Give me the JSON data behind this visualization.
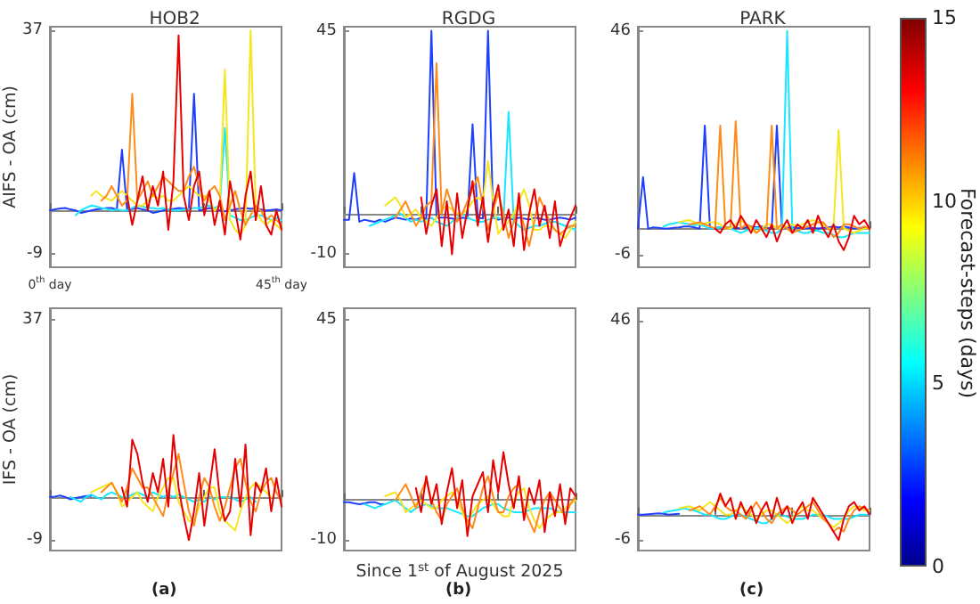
{
  "chart_data": [
    {
      "type": "line",
      "title": "HOB2",
      "ylabel": "AIFS - OA (cm)",
      "categories": [
        "0$^{th}$ day",
        null,
        null,
        null,
        null,
        null,
        null,
        null,
        null,
        null,
        null,
        null,
        null,
        null,
        null,
        null,
        null,
        null,
        null,
        null,
        null,
        null,
        null,
        null,
        null,
        null,
        null,
        null,
        null,
        null,
        null,
        null,
        null,
        null,
        null,
        null,
        null,
        null,
        null,
        null,
        null,
        null,
        null,
        null,
        null,
        "45$^{th}$ day"
      ],
      "ylim": [
        -11.7,
        37.8
      ],
      "yticks": [
        -9,
        37
      ],
      "marker": "none",
      "line_style": "solid",
      "series": [
        {
          "color": "#1f3fff",
          "values": [
            0,
            0.2,
            0.4,
            0.5,
            0.2,
            0,
            -0.5,
            -0.3,
            0,
            0.2,
            0.3,
            0.5,
            0.5,
            0.2,
            12.5,
            0,
            0.3,
            0.5,
            0.2,
            0,
            -0.5,
            -0.3,
            0,
            0.2,
            0.3,
            0.5,
            0.4,
            0.2,
            24,
            0,
            0.2,
            0.5,
            0.3,
            0,
            -0.2,
            0,
            0.2,
            0.4,
            0.5,
            0.3,
            0.5,
            0.2,
            0,
            0.1,
            0.2,
            0
          ]
        },
        {
          "color": "#19e6ff",
          "values": [
            null,
            null,
            null,
            null,
            null,
            -1,
            0,
            0.5,
            1,
            0.8,
            0.5,
            0.3,
            0,
            0.2,
            0,
            0,
            0.5,
            1,
            0.8,
            0.5,
            0.5,
            0.3,
            0.5,
            0.2,
            0,
            0,
            0.2,
            0.3,
            0.5,
            0.5,
            0.8,
            1,
            0.5,
            1,
            17,
            -1,
            -1.5,
            -2,
            -2,
            -1.5,
            -1,
            -1,
            -1.5,
            -2,
            -1.5,
            -2
          ]
        },
        {
          "color": "#f5e61e",
          "values": [
            null,
            null,
            null,
            null,
            null,
            null,
            null,
            null,
            3,
            4,
            3,
            2.5,
            2,
            3,
            4,
            3,
            2,
            1,
            1,
            2,
            3,
            2.5,
            3,
            2,
            2,
            3,
            4,
            5,
            4,
            3,
            3,
            2,
            0,
            1,
            29,
            -2,
            -4,
            -5,
            -3,
            37,
            0,
            -2,
            -3,
            -2,
            -3,
            -4
          ]
        },
        {
          "color": "#ff8c1a",
          "values": [
            null,
            null,
            null,
            null,
            null,
            null,
            null,
            null,
            null,
            null,
            2,
            3,
            5,
            3,
            1,
            2,
            24,
            2,
            4,
            6,
            3,
            5,
            7,
            6,
            5,
            4,
            4,
            7,
            9,
            5,
            2,
            4,
            5,
            3,
            -2,
            1,
            4,
            0,
            -3,
            -1,
            1,
            0,
            -2,
            -1,
            -2,
            -3
          ]
        },
        {
          "color": "#e60000",
          "values": [
            null,
            null,
            null,
            null,
            null,
            null,
            null,
            null,
            null,
            null,
            null,
            null,
            null,
            null,
            null,
            3,
            -3,
            2,
            7,
            0,
            5,
            1,
            8,
            -4,
            6,
            36,
            3,
            -2,
            5,
            8,
            -1,
            4,
            -3,
            2,
            -5,
            6,
            0,
            -6,
            3,
            8,
            -2,
            5,
            -3,
            -5,
            0,
            -4
          ]
        }
      ]
    },
    {
      "type": "line",
      "title": "RGDG",
      "categories": [
        null,
        null,
        null,
        null,
        null,
        null,
        null,
        null,
        null,
        null,
        null,
        null,
        null,
        null,
        null,
        null,
        null,
        null,
        null,
        null,
        null,
        null,
        null,
        null,
        null,
        null,
        null,
        null,
        null,
        null,
        null,
        null,
        null,
        null,
        null,
        null,
        null,
        null,
        null,
        null,
        null,
        null,
        null,
        null,
        null,
        null
      ],
      "ylim": [
        -13.2,
        46
      ],
      "yticks": [
        -10,
        45
      ],
      "tick_labels": "y",
      "marker": "none",
      "line_style": "solid",
      "series": [
        {
          "color": "#1f3fff",
          "values": [
            -1.5,
            -1.5,
            10,
            -2,
            -1.5,
            -1.8,
            -2,
            -1.5,
            -2,
            -1.5,
            -1,
            -1.2,
            -1.5,
            -1.2,
            -1.5,
            -1,
            -1.2,
            45,
            -1,
            -1,
            -1,
            -1.2,
            -1.5,
            -1,
            -1.2,
            22,
            -1,
            -1.2,
            45,
            -1,
            -1.5,
            -1.2,
            -1,
            -1.5,
            -1,
            -1.2,
            -1.5,
            -1,
            -1.2,
            -1.5,
            -1.5,
            -1.2,
            -1,
            -1.2,
            -1.5,
            -1
          ]
        },
        {
          "color": "#19e6ff",
          "values": [
            null,
            null,
            null,
            null,
            null,
            -3,
            -2.5,
            -2,
            -1.5,
            -1,
            -0.5,
            0,
            -1,
            -2,
            -1.5,
            -2,
            -1.5,
            -1,
            -2,
            -2.5,
            -3,
            -2,
            -1,
            0,
            -1,
            -1.5,
            -2,
            -2,
            -1.5,
            -1,
            -1,
            -1.5,
            25,
            -2,
            -3,
            -4,
            -3.5,
            -3,
            -3,
            -2.5,
            -2,
            -2,
            -2.5,
            -3,
            -3.5,
            -4
          ]
        },
        {
          "color": "#f5e61e",
          "values": [
            null,
            null,
            null,
            null,
            null,
            null,
            null,
            null,
            2,
            3,
            4,
            2,
            -1,
            0,
            1,
            -1,
            -2,
            -3,
            -1,
            1,
            2,
            1,
            0,
            0,
            1,
            3,
            4,
            3,
            13,
            3,
            -5,
            -3,
            -2,
            0,
            3,
            6,
            2,
            -4,
            -4,
            -3,
            -3,
            -4,
            -5,
            -6,
            -4,
            -2
          ]
        },
        {
          "color": "#ff8c1a",
          "values": [
            null,
            null,
            null,
            null,
            null,
            null,
            null,
            null,
            null,
            null,
            -1,
            1,
            3,
            0,
            -3,
            -1,
            2,
            3,
            37,
            0,
            6,
            2,
            -2,
            0,
            3,
            6,
            9,
            2,
            -4,
            1,
            5,
            0,
            -6,
            -2,
            2,
            -3,
            -8,
            -2,
            4,
            1,
            -2,
            -4,
            -5,
            -4,
            -3,
            -3
          ]
        },
        {
          "color": "#e60000",
          "values": [
            null,
            null,
            null,
            null,
            null,
            null,
            null,
            null,
            null,
            null,
            null,
            null,
            null,
            null,
            null,
            4,
            -5,
            2,
            6,
            -8,
            3,
            -10,
            5,
            -6,
            1,
            8,
            -3,
            4,
            -7,
            2,
            7,
            -4,
            1,
            -8,
            5,
            -9,
            0,
            6,
            -3,
            2,
            -6,
            3,
            -8,
            -4,
            -1,
            2
          ]
        }
      ]
    },
    {
      "type": "line",
      "title": "PARK",
      "categories": [
        null,
        null,
        null,
        null,
        null,
        null,
        null,
        null,
        null,
        null,
        null,
        null,
        null,
        null,
        null,
        null,
        null,
        null,
        null,
        null,
        null,
        null,
        null,
        null,
        null,
        null,
        null,
        null,
        null,
        null,
        null,
        null,
        null,
        null,
        null,
        null,
        null,
        null,
        null,
        null,
        null,
        null,
        null,
        null,
        null,
        null
      ],
      "ylim": [
        -9,
        47
      ],
      "yticks": [
        -6,
        46
      ],
      "tick_labels": "y",
      "marker": "none",
      "line_style": "solid",
      "clabel": "Forecast-steps (days)",
      "clim": [
        0,
        15
      ],
      "cticks": [
        0,
        5,
        10,
        15
      ],
      "series": [
        {
          "color": "#1f3fff",
          "values": [
            0,
            12,
            0,
            0.3,
            0.2,
            0,
            0,
            0.2,
            0.3,
            0.5,
            0.5,
            0.3,
            0,
            24,
            0,
            0.2,
            0.3,
            0.3,
            0,
            0.2,
            0,
            0.3,
            0.5,
            0.3,
            0.5,
            0.2,
            0,
            24,
            0,
            0.3,
            0.3,
            0.2,
            0,
            0.1,
            0.2,
            0,
            0.2,
            0.3,
            0.5,
            0.3,
            0.5,
            0.3,
            0,
            0.2,
            0.2,
            0
          ]
        },
        {
          "color": "#19e6ff",
          "values": [
            null,
            null,
            null,
            null,
            null,
            0.5,
            1,
            1.2,
            1.5,
            1.2,
            1,
            0.8,
            1,
            0.5,
            0,
            0,
            0.3,
            0.5,
            0,
            -0.5,
            -1,
            -0.5,
            0,
            0.2,
            0,
            -0.5,
            -1,
            -1,
            0,
            46,
            0,
            -0.5,
            -1,
            -1,
            -0.5,
            -0.5,
            -1,
            -1,
            -1.5,
            -2,
            -2,
            -1.5,
            -1,
            -1,
            -1,
            -1
          ]
        },
        {
          "color": "#f5e61e",
          "values": [
            null,
            null,
            null,
            null,
            null,
            null,
            null,
            null,
            1.5,
            1.8,
            2,
            1.5,
            1,
            1.2,
            1.5,
            1.5,
            1,
            0,
            0,
            1,
            2,
            1,
            0,
            -1,
            0,
            1,
            1,
            0,
            0,
            0.5,
            1,
            0.5,
            1,
            1.5,
            2,
            1.5,
            1,
            0,
            0,
            23,
            0,
            -0.5,
            -1,
            -0.5,
            0,
            0
          ]
        },
        {
          "color": "#ff8c1a",
          "values": [
            null,
            null,
            null,
            null,
            null,
            null,
            null,
            null,
            null,
            null,
            1,
            1.2,
            1.5,
            1,
            0.5,
            0,
            24,
            0,
            0.5,
            25,
            0,
            1,
            0.5,
            -1,
            0,
            0,
            24,
            0,
            1,
            0,
            -1,
            -0.5,
            0,
            0.5,
            1,
            1.5,
            1.5,
            0,
            -2,
            -1,
            1,
            1,
            0.5,
            0,
            0.5,
            0
          ]
        },
        {
          "color": "#e60000",
          "values": [
            null,
            null,
            null,
            null,
            null,
            null,
            null,
            null,
            null,
            null,
            null,
            null,
            null,
            null,
            null,
            0,
            -1,
            1,
            2,
            0,
            3,
            1,
            -1,
            2,
            0,
            -2,
            1,
            -3,
            0,
            2,
            -1,
            1,
            0,
            2,
            -1,
            3,
            0,
            -2,
            1,
            -3,
            -5,
            -2,
            3,
            1,
            2,
            0
          ]
        }
      ]
    },
    {
      "type": "line",
      "ylabel": "IFS - OA (cm)",
      "annotations": [
        "(a)"
      ],
      "categories": [
        null,
        null,
        null,
        null,
        null,
        null,
        null,
        null,
        null,
        null,
        null,
        null,
        null,
        null,
        null,
        null,
        null,
        null,
        null,
        null,
        null,
        null,
        null,
        null,
        null,
        null,
        null,
        null,
        null,
        null,
        null,
        null,
        null,
        null,
        null,
        null,
        null,
        null,
        null,
        null,
        null,
        null,
        null,
        null,
        null,
        null
      ],
      "ylim": [
        -11.2,
        39.5
      ],
      "yticks": [
        -9,
        37
      ],
      "tick_labels": "y",
      "marker": "none",
      "line_style": "solid",
      "series": [
        {
          "color": "#1f3fff",
          "values": [
            0,
            0.1,
            0.3,
            0,
            -0.5,
            -0.2,
            0,
            0.2,
            0.2,
            null,
            null,
            null,
            null,
            null,
            null,
            null,
            null,
            null,
            null,
            null,
            null,
            null,
            null,
            null,
            null,
            null,
            null,
            null,
            null,
            null,
            null,
            null,
            null,
            null,
            null,
            null,
            null,
            null,
            null,
            null,
            null,
            null,
            null,
            null,
            null,
            null
          ]
        },
        {
          "color": "#19e6ff",
          "values": [
            null,
            null,
            null,
            null,
            0,
            -0.5,
            -1,
            0,
            0.5,
            0,
            -0.5,
            0.5,
            1,
            0.5,
            0,
            0,
            0.5,
            1,
            0.5,
            0,
            1,
            0.5,
            0,
            0.5,
            0,
            0.5,
            0,
            -0.5,
            -1,
            -0.5,
            -1,
            0,
            -0.5,
            0,
            0,
            0,
            -0.5,
            -1,
            -0.5,
            0,
            -1,
            null,
            null,
            null,
            null,
            null
          ]
        },
        {
          "color": "#f5e61e",
          "values": [
            null,
            null,
            null,
            null,
            null,
            null,
            null,
            null,
            1,
            1.5,
            2,
            2.5,
            3,
            1,
            -2,
            -1,
            0,
            1,
            -1,
            -2,
            -3,
            0,
            2,
            4,
            4,
            -1,
            -3,
            -5,
            -5,
            -2,
            0,
            2,
            2,
            -3,
            -5,
            -6,
            -7,
            -3,
            0,
            2,
            3,
            2,
            1,
            0,
            null,
            null
          ]
        },
        {
          "color": "#ff8c1a",
          "values": [
            null,
            null,
            null,
            null,
            null,
            null,
            null,
            null,
            null,
            null,
            1,
            2,
            3,
            1,
            -1,
            2,
            6,
            4,
            2,
            2,
            0,
            -2,
            -4,
            1,
            5,
            9,
            3,
            -3,
            -6,
            0,
            4,
            2,
            -2,
            -5,
            -2,
            2,
            6,
            8,
            3,
            -1,
            -3,
            1,
            3,
            4,
            1,
            -1
          ]
        },
        {
          "color": "#e60000",
          "values": [
            null,
            null,
            null,
            null,
            null,
            null,
            null,
            null,
            null,
            null,
            null,
            null,
            null,
            null,
            2,
            -2,
            12,
            9,
            3,
            -1,
            5,
            1,
            8,
            -2,
            13,
            2,
            -4,
            -9,
            -3,
            5,
            -6,
            2,
            10,
            0,
            -5,
            -3,
            8,
            -2,
            11,
            -8,
            3,
            1,
            6,
            -3,
            4,
            -2
          ]
        }
      ]
    },
    {
      "type": "line",
      "xlabel": "Since 1$^{st}$ of August 2025",
      "annotations": [
        "(b)"
      ],
      "categories": [
        null,
        null,
        null,
        null,
        null,
        null,
        null,
        null,
        null,
        null,
        null,
        null,
        null,
        null,
        null,
        null,
        null,
        null,
        null,
        null,
        null,
        null,
        null,
        null,
        null,
        null,
        null,
        null,
        null,
        null,
        null,
        null,
        null,
        null,
        null,
        null,
        null,
        null,
        null,
        null,
        null,
        null,
        null,
        null,
        null,
        null
      ],
      "ylim": [
        -12.6,
        48
      ],
      "yticks": [
        -10,
        45
      ],
      "tick_labels": "y",
      "marker": "none",
      "line_style": "solid",
      "series": [
        {
          "color": "#1f3fff",
          "values": [
            -0.5,
            -0.5,
            -0.8,
            -1,
            -0.8,
            -0.5,
            -0.5,
            -1,
            -1,
            null,
            null,
            null,
            null,
            null,
            null,
            null,
            null,
            null,
            null,
            null,
            null,
            null,
            null,
            null,
            null,
            null,
            null,
            null,
            null,
            null,
            null,
            null,
            null,
            null,
            null,
            null,
            null,
            null,
            null,
            null,
            null,
            null,
            null,
            null,
            null,
            null
          ]
        },
        {
          "color": "#19e6ff",
          "values": [
            null,
            null,
            null,
            null,
            -1,
            -1.5,
            -2,
            -1.5,
            -1,
            -0.5,
            0,
            -1,
            -2,
            -3,
            -2,
            -1.5,
            -1,
            -1.5,
            -2,
            -2,
            -2,
            -2.5,
            -3,
            -3.5,
            -4,
            -4,
            -3,
            -2,
            -1.5,
            -1,
            -1,
            -2,
            -2.5,
            -3,
            -3,
            -3,
            -2.5,
            -2,
            -2,
            -2,
            -2,
            -2.5,
            -3,
            -3,
            -3,
            -3
          ]
        },
        {
          "color": "#f5e61e",
          "values": [
            null,
            null,
            null,
            null,
            null,
            null,
            null,
            null,
            1,
            1.5,
            2,
            0,
            -3,
            -2,
            -1,
            0,
            -1,
            -2,
            -2,
            0,
            1,
            2,
            0,
            -3,
            -6,
            -3,
            -1,
            0,
            1,
            -1,
            -3,
            -4,
            -4,
            0,
            2,
            3,
            -2,
            -5,
            -7,
            -5,
            -4,
            -3,
            -3,
            -2,
            -1,
            0
          ]
        },
        {
          "color": "#ff8c1a",
          "values": [
            null,
            null,
            null,
            null,
            null,
            null,
            null,
            null,
            null,
            null,
            0,
            2,
            4,
            1,
            -2,
            2,
            5,
            0,
            -3,
            -5,
            -1,
            1,
            3,
            -2,
            -5,
            -7,
            -2,
            3,
            6,
            1,
            -3,
            -3,
            1,
            3,
            4,
            -2,
            -5,
            -8,
            -3,
            0,
            2,
            0,
            -2,
            -4,
            -1,
            1
          ]
        },
        {
          "color": "#e60000",
          "values": [
            null,
            null,
            null,
            null,
            null,
            null,
            null,
            null,
            null,
            null,
            null,
            null,
            null,
            null,
            3,
            -3,
            6,
            -1,
            4,
            -6,
            2,
            8,
            -2,
            5,
            -9,
            1,
            4,
            7,
            -3,
            10,
            2,
            12,
            4,
            -2,
            6,
            -5,
            3,
            -1,
            5,
            -8,
            2,
            -4,
            4,
            -6,
            3,
            1
          ]
        }
      ]
    },
    {
      "type": "line",
      "annotations": [
        "(c)"
      ],
      "categories": [
        null,
        null,
        null,
        null,
        null,
        null,
        null,
        null,
        null,
        null,
        null,
        null,
        null,
        null,
        null,
        null,
        null,
        null,
        null,
        null,
        null,
        null,
        null,
        null,
        null,
        null,
        null,
        null,
        null,
        null,
        null,
        null,
        null,
        null,
        null,
        null,
        null,
        null,
        null,
        null,
        null,
        null,
        null,
        null,
        null,
        null
      ],
      "ylim": [
        -8.5,
        48.9
      ],
      "yticks": [
        -6,
        46
      ],
      "tick_labels": "y",
      "marker": "none",
      "line_style": "solid",
      "series": [
        {
          "color": "#1f3fff",
          "values": [
            0,
            0,
            0.1,
            0.2,
            0.3,
            0.2,
            0,
            0.1,
            0.2,
            null,
            null,
            null,
            null,
            null,
            null,
            null,
            null,
            null,
            null,
            null,
            null,
            null,
            null,
            null,
            null,
            null,
            null,
            null,
            null,
            null,
            null,
            null,
            null,
            null,
            null,
            null,
            null,
            null,
            null,
            null,
            null,
            null,
            null,
            null,
            null,
            null
          ]
        },
        {
          "color": "#19e6ff",
          "values": [
            null,
            null,
            null,
            null,
            null,
            0.5,
            0.8,
            1,
            1.2,
            1.5,
            1.2,
            1,
            0.5,
            0,
            0,
            -0.5,
            -1,
            -1,
            -0.5,
            0,
            0,
            -0.5,
            -1,
            -1.5,
            -2,
            -2,
            -1,
            0,
            0,
            -0.5,
            -1,
            -1,
            -1,
            -0.5,
            0,
            0,
            0,
            -0.5,
            -1,
            -1,
            -1,
            -1,
            -0.5,
            0,
            0,
            0
          ]
        },
        {
          "color": "#f5e61e",
          "values": [
            null,
            null,
            null,
            null,
            null,
            null,
            null,
            null,
            1.5,
            1.8,
            2,
            1.5,
            1,
            2,
            3,
            2,
            1,
            0,
            0,
            1,
            2,
            1,
            0,
            -1,
            0,
            1,
            1,
            0,
            -1,
            -2,
            -1,
            1,
            2,
            1,
            1,
            0,
            -1,
            -2,
            -3,
            -2,
            -1,
            1,
            2,
            1.5,
            1,
            1
          ]
        },
        {
          "color": "#ff8c1a",
          "values": [
            null,
            null,
            null,
            null,
            null,
            null,
            null,
            null,
            null,
            null,
            1,
            1.5,
            2,
            1,
            0,
            2,
            4,
            2,
            1,
            1,
            0,
            -1,
            1,
            3,
            1,
            -1,
            -2,
            0,
            1,
            2,
            1,
            0,
            1,
            2,
            3,
            1,
            -1,
            -2,
            -4,
            -3,
            -4,
            -1,
            1,
            2,
            1.5,
            1
          ]
        },
        {
          "color": "#e60000",
          "values": [
            null,
            null,
            null,
            null,
            null,
            null,
            null,
            null,
            null,
            null,
            null,
            null,
            null,
            null,
            null,
            1,
            5,
            2,
            4,
            -1,
            3,
            0,
            2,
            -2,
            1,
            3,
            -1,
            4,
            0,
            2,
            -2,
            1,
            3,
            -1,
            4,
            2,
            0,
            -2,
            -4,
            -6,
            -1,
            2,
            3,
            1,
            2,
            0
          ]
        }
      ]
    }
  ]
}
